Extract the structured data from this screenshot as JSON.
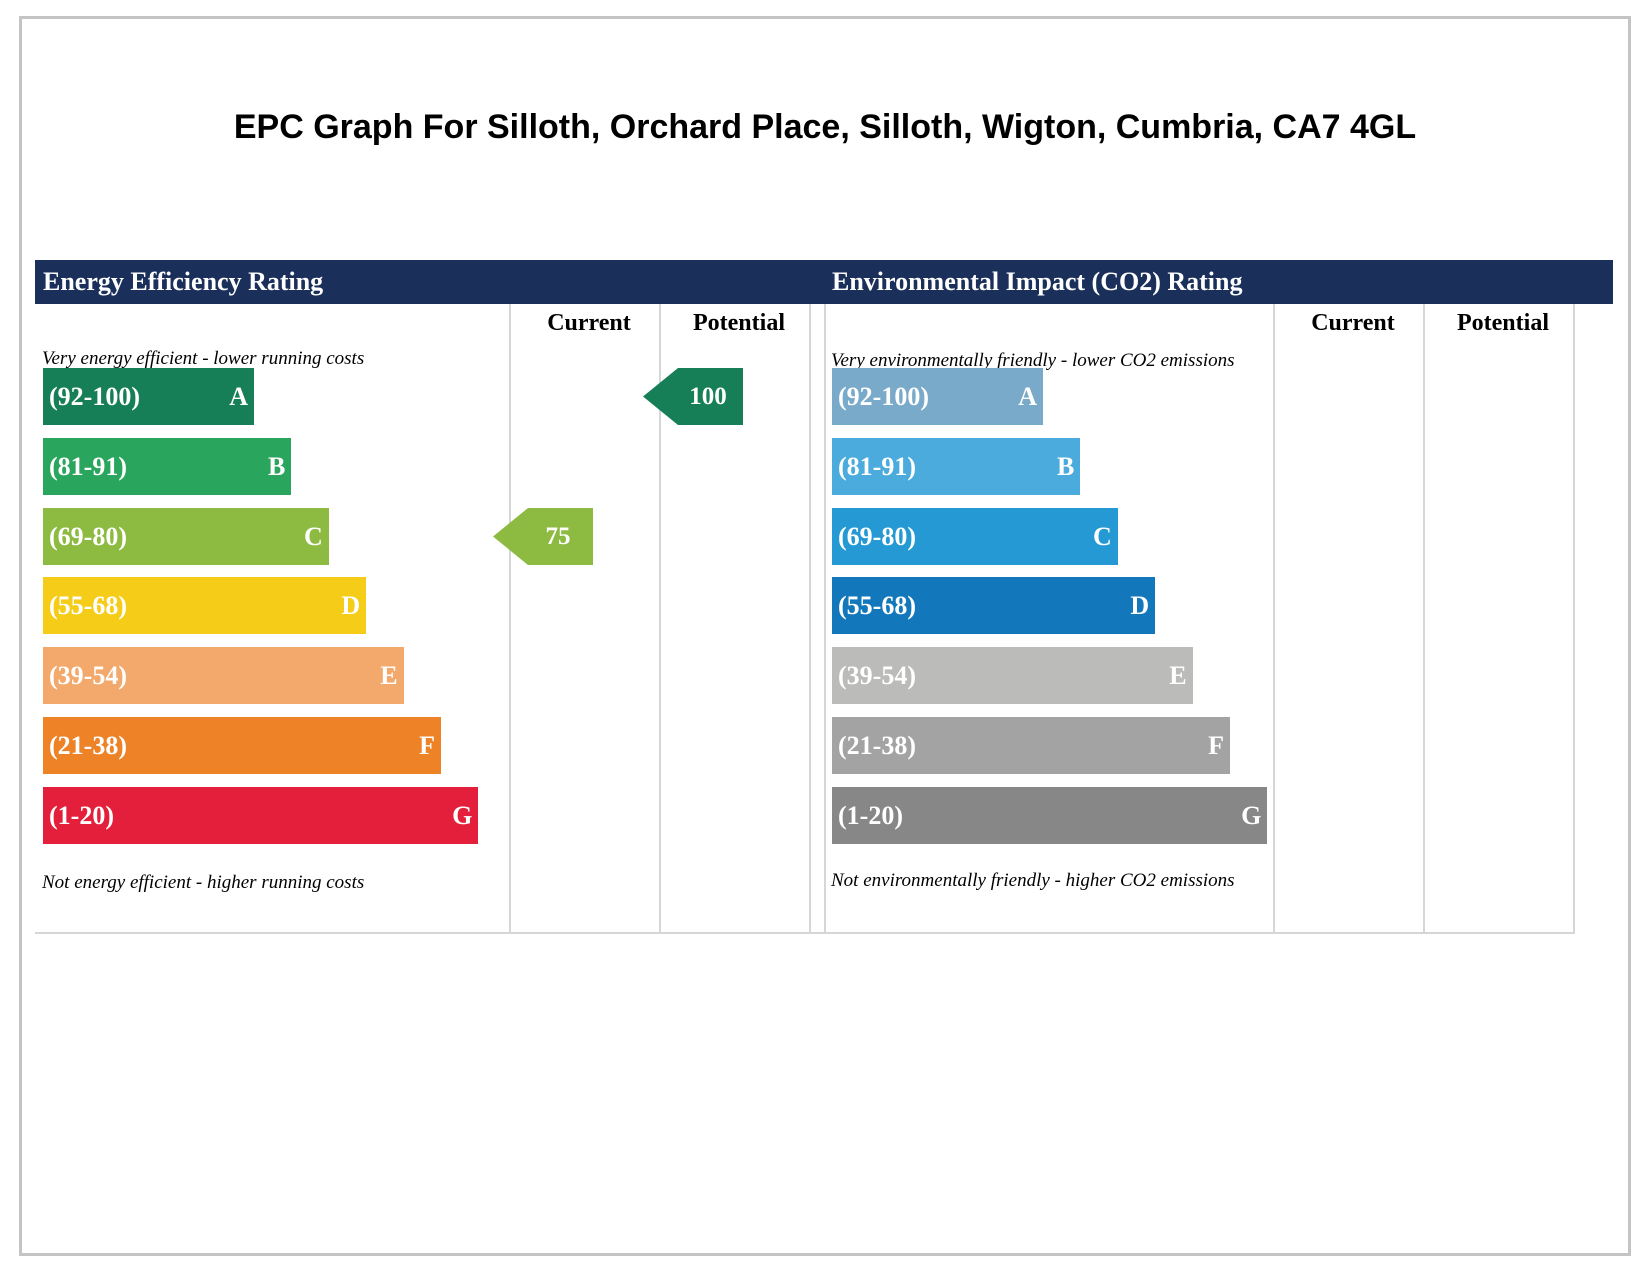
{
  "title": "EPC Graph For Silloth, Orchard Place, Silloth, Wigton, Cumbria, CA7 4GL",
  "chart_data": [
    {
      "type": "bar",
      "title": "Energy Efficiency Rating",
      "columns": [
        "Current",
        "Potential"
      ],
      "top_note": "Very energy efficient - lower running costs",
      "bottom_note": "Not energy efficient - higher running costs",
      "bands": [
        {
          "range": "(92-100)",
          "letter": "A",
          "color": "#177f57"
        },
        {
          "range": "(81-91)",
          "letter": "B",
          "color": "#2aa55d"
        },
        {
          "range": "(69-80)",
          "letter": "C",
          "color": "#8dbb42"
        },
        {
          "range": "(55-68)",
          "letter": "D",
          "color": "#f5cd18"
        },
        {
          "range": "(39-54)",
          "letter": "E",
          "color": "#f2a96b"
        },
        {
          "range": "(21-38)",
          "letter": "F",
          "color": "#ed8226"
        },
        {
          "range": "(1-20)",
          "letter": "G",
          "color": "#e41f3b"
        }
      ],
      "current": {
        "value": "75",
        "band": "C",
        "color": "#8dbb42"
      },
      "potential": {
        "value": "100",
        "band": "A",
        "color": "#177f57"
      }
    },
    {
      "type": "bar",
      "title": "Environmental Impact (CO2) Rating",
      "columns": [
        "Current",
        "Potential"
      ],
      "top_note": "Very environmentally friendly - lower CO2 emissions",
      "bottom_note": "Not environmentally friendly - higher CO2 emissions",
      "bands": [
        {
          "range": "(92-100)",
          "letter": "A",
          "color": "#7aaac9"
        },
        {
          "range": "(81-91)",
          "letter": "B",
          "color": "#4aabdc"
        },
        {
          "range": "(69-80)",
          "letter": "C",
          "color": "#2499d3"
        },
        {
          "range": "(55-68)",
          "letter": "D",
          "color": "#1377bb"
        },
        {
          "range": "(39-54)",
          "letter": "E",
          "color": "#bbbbb9"
        },
        {
          "range": "(21-38)",
          "letter": "F",
          "color": "#a3a3a3"
        },
        {
          "range": "(1-20)",
          "letter": "G",
          "color": "#878787"
        }
      ]
    }
  ]
}
